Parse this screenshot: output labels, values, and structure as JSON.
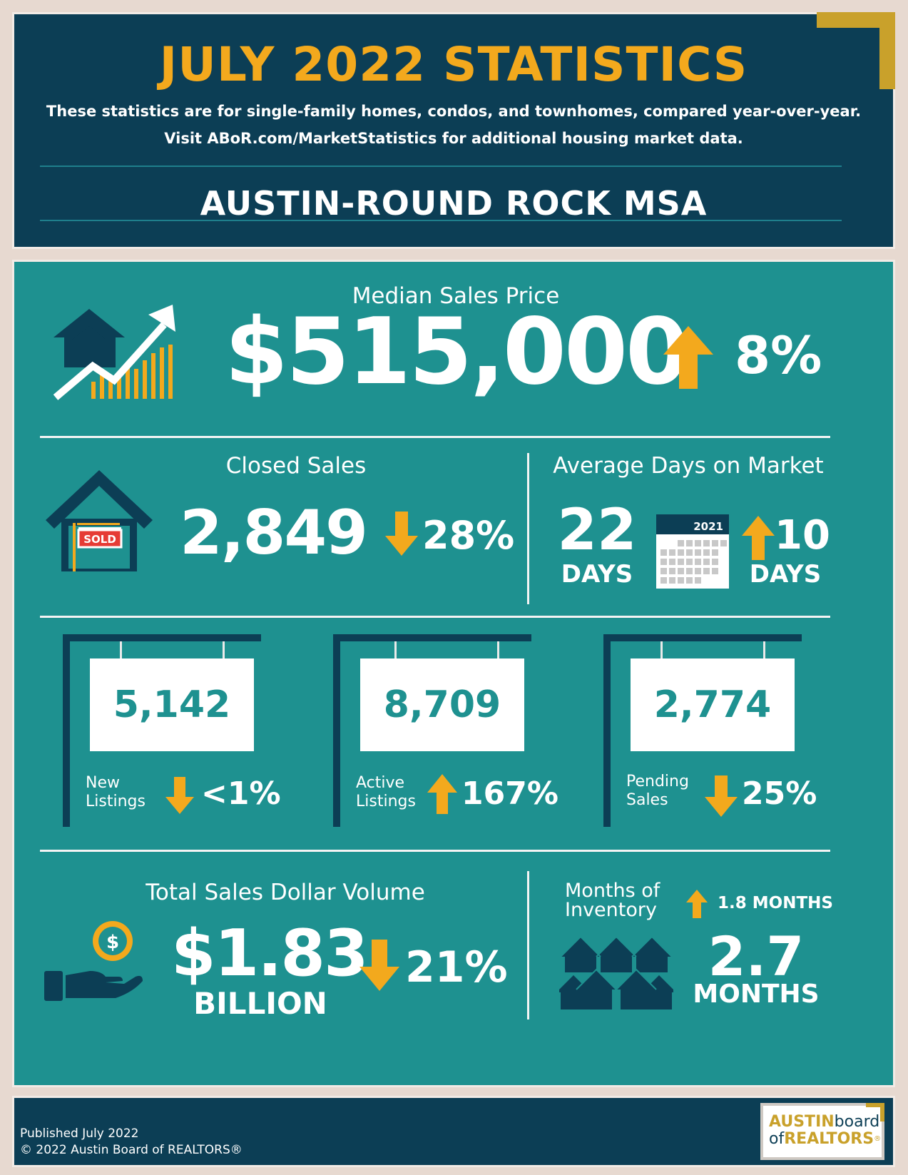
{
  "header": {
    "title": "JULY 2022 STATISTICS",
    "subtitle_line1": "These statistics are for single-family homes, condos, and townhomes, compared year-over-year.",
    "subtitle_line2": "Visit ABoR.com/MarketStatistics for additional housing market data.",
    "region": "AUSTIN-ROUND ROCK MSA"
  },
  "median_price": {
    "label": "Median Sales Price",
    "value": "$515,000",
    "change": "8%",
    "direction": "up"
  },
  "closed_sales": {
    "label": "Closed Sales",
    "value": "2,849",
    "change": "28%",
    "direction": "down",
    "sign_text": "SOLD"
  },
  "days_on_market": {
    "label": "Average Days on Market",
    "value": "22",
    "unit": "DAYS",
    "calendar_year": "2021",
    "change": "10",
    "change_unit": "DAYS",
    "direction": "up"
  },
  "listings": [
    {
      "value": "5,142",
      "label_line1": "New",
      "label_line2": "Listings",
      "change": "<1%",
      "direction": "down"
    },
    {
      "value": "8,709",
      "label_line1": "Active",
      "label_line2": "Listings",
      "change": "167%",
      "direction": "up"
    },
    {
      "value": "2,774",
      "label_line1": "Pending",
      "label_line2": "Sales",
      "change": "25%",
      "direction": "down"
    }
  ],
  "volume": {
    "label": "Total Sales Dollar Volume",
    "value": "$1.83",
    "unit": "BILLION",
    "change": "21%",
    "direction": "down",
    "icon_symbol": "$"
  },
  "inventory": {
    "label_line1": "Months of",
    "label_line2": "Inventory",
    "change": "1.8 MONTHS",
    "direction": "up",
    "value": "2.7",
    "unit": "MONTHS"
  },
  "footer": {
    "published": "Published July 2022",
    "copyright": "© 2022 Austin Board of REALTORS®",
    "logo_line1_a": "AUSTIN",
    "logo_line1_b": "board",
    "logo_line2_a": "of",
    "logo_line2_b": "REALTORS",
    "logo_reg": "®"
  },
  "colors": {
    "navy": "#0c3e55",
    "teal": "#1e9190",
    "gold": "#f3a91d",
    "background": "#e7d9d0"
  }
}
